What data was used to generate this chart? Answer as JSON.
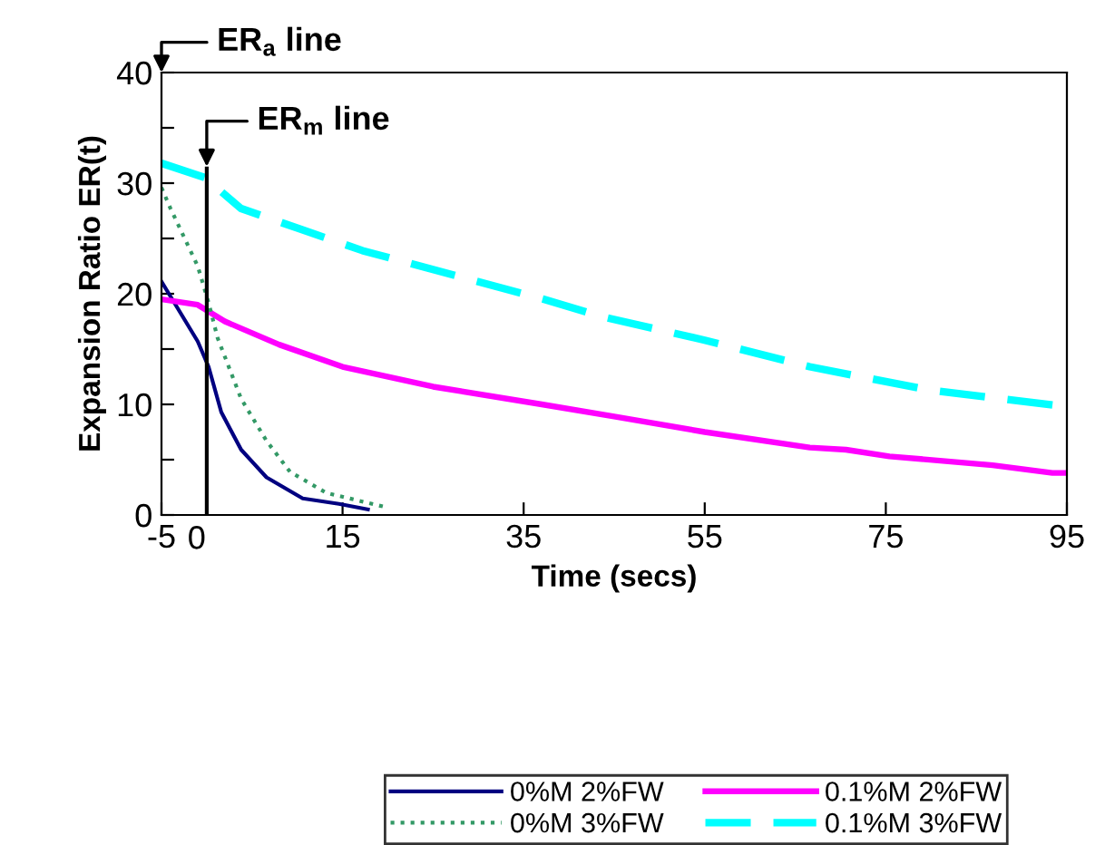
{
  "chart_data": {
    "type": "line",
    "xlabel": "Time (secs)",
    "ylabel": "Expansion Ratio ER(t)",
    "xlim": [
      -5,
      95
    ],
    "xticks": [
      -5,
      15,
      35,
      55,
      75,
      95
    ],
    "ylim": [
      0,
      40
    ],
    "yticks": [
      0,
      {
        "value": 5,
        "label": null
      },
      10,
      {
        "value": 15,
        "label": null
      },
      20,
      {
        "value": 25,
        "label": null
      },
      30,
      {
        "value": 35,
        "label": null
      },
      40
    ],
    "grid": false,
    "legend": "bottom",
    "marker": "none",
    "series": [
      {
        "name": "0%M 2%FW",
        "color": "#000080",
        "line_style": "solid",
        "x": [
          -5,
          -1,
          0.2,
          1.6,
          3.8,
          6.6,
          10.6,
          14.6,
          17.8
        ],
        "values": [
          21.1,
          15.7,
          13.4,
          9.3,
          5.9,
          3.4,
          1.5,
          1.0,
          0.5
        ]
      },
      {
        "name": "0.1%M 2%FW",
        "color": "#ff00ff",
        "line_style": "solid",
        "x": [
          -5,
          -1,
          2,
          8,
          15,
          25,
          37,
          45,
          55,
          66.6,
          70.6,
          75.4,
          86.8,
          93.4,
          95
        ],
        "values": [
          19.5,
          19,
          17.5,
          15.4,
          13.4,
          11.6,
          10,
          8.9,
          7.5,
          6.1,
          5.9,
          5.3,
          4.5,
          3.8,
          3.8
        ]
      },
      {
        "name": "0%M 3%FW",
        "color": "#339966",
        "line_style": "dotted",
        "x": [
          -5,
          -4,
          -1,
          0.2,
          1.2,
          3.8,
          6.6,
          9.2,
          13.2,
          19.8
        ],
        "values": [
          29.6,
          27.7,
          22.5,
          19.2,
          16,
          10.5,
          6.7,
          3.9,
          2,
          0.7
        ]
      },
      {
        "name": "0.1%M 3%FW",
        "color": "#00ffff",
        "line_style": "dashed",
        "x": [
          -5,
          -0.2,
          3.8,
          17.2,
          37.2,
          43.8,
          55,
          66.6,
          79.8,
          95
        ],
        "values": [
          31.8,
          30.5,
          27.7,
          23.9,
          19.5,
          17.9,
          15.8,
          13.4,
          11.3,
          9.8
        ]
      }
    ],
    "ref_lines": [
      {
        "axis": "x",
        "value": 0,
        "label": "0",
        "color": "#000000",
        "line_style": "solid"
      }
    ],
    "annotations": [
      "ER$_{a}$ line",
      {
        "text": "ER$_{m}$ line",
        "x": 0,
        "y": 31.5
      }
    ]
  }
}
